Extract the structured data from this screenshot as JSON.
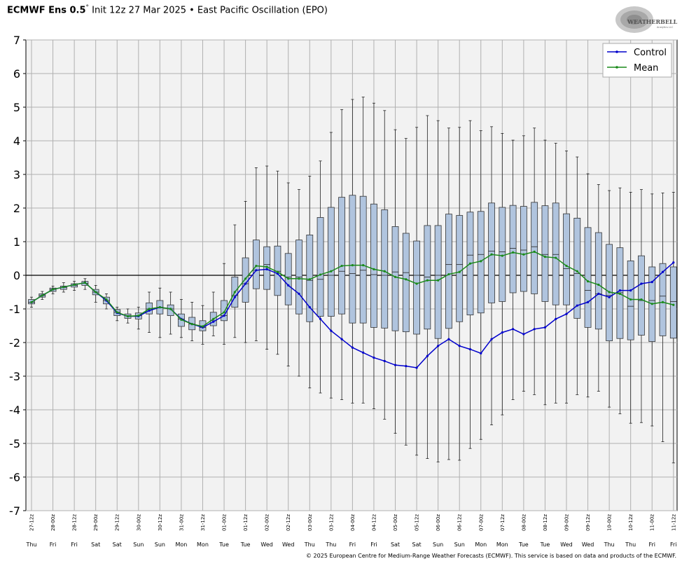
{
  "header": {
    "model": "ECMWF Ens 0.5",
    "model_suffix": "°",
    "rest": "Init 12z 27 Mar 2025 • East Pacific Oscillation (EPO)"
  },
  "logo_text": {
    "main": "WEATHERBELL",
    "sub": "Analytics LLC"
  },
  "footer": {
    "copyright": "© 2025 European Centre for Medium-Range Weather Forecasts (ECMWF). This service is based on data and products of the ECMWF."
  },
  "colors": {
    "control": "#0000cc",
    "mean": "#1a8a1a",
    "box_fill": "#b0c4de",
    "plot_bg": "#f2f2f2",
    "grid": "#b0b0b0"
  },
  "chart_data": {
    "type": "box",
    "ylim": [
      -7,
      7
    ],
    "yticks": [
      7,
      6,
      5,
      4,
      3,
      2,
      1,
      0,
      -1,
      -2,
      -3,
      -4,
      -5,
      -6,
      -7
    ],
    "grid": true,
    "legend_position": "top-right",
    "legend": [
      "Control",
      "Mean"
    ],
    "x_times": [
      "27-12z",
      "28-00z",
      "28-12z",
      "29-00z",
      "29-12z",
      "30-00z",
      "30-12z",
      "31-00z",
      "31-12z",
      "01-00z",
      "01-12z",
      "02-00z",
      "02-12z",
      "03-00z",
      "03-12z",
      "04-00z",
      "04-12z",
      "05-00z",
      "05-12z",
      "06-00z",
      "06-12z",
      "07-00z",
      "07-12z",
      "08-00z",
      "08-12z",
      "09-00z",
      "09-12z",
      "10-00z",
      "10-12z",
      "11-00z",
      "11-12z"
    ],
    "x_days": [
      "Thu",
      "Fri",
      "Fri",
      "Sat",
      "Sat",
      "Sun",
      "Sun",
      "Mon",
      "Mon",
      "Tue",
      "Tue",
      "Wed",
      "Wed",
      "Thu",
      "Thu",
      "Fri",
      "Fri",
      "Sat",
      "Sat",
      "Sun",
      "Sun",
      "Mon",
      "Mon",
      "Tue",
      "Tue",
      "Wed",
      "Wed",
      "Thu",
      "Thu",
      "Fri",
      "Fri"
    ],
    "series": [
      {
        "name": "Control",
        "values": [
          -0.8,
          -0.6,
          -0.42,
          -0.35,
          -0.28,
          -0.22,
          -0.5,
          -0.75,
          -1.12,
          -1.22,
          -1.22,
          -1.05,
          -0.95,
          -1.0,
          -1.3,
          -1.45,
          -1.55,
          -1.38,
          -1.2,
          -0.65,
          -0.25,
          0.15,
          0.18,
          0.05,
          -0.3,
          -0.55,
          -0.95,
          -1.3,
          -1.65,
          -1.9,
          -2.15,
          -2.3,
          -2.45,
          -2.55,
          -2.67,
          -2.7,
          -2.75,
          -2.4,
          -2.1,
          -1.9,
          -2.1,
          -2.2,
          -2.32,
          -1.9,
          -1.7,
          -1.6,
          -1.75,
          -1.6,
          -1.55,
          -1.3,
          -1.15,
          -0.9,
          -0.8,
          -0.55,
          -0.65,
          -0.45,
          -0.45,
          -0.25,
          -0.2,
          0.1,
          0.38
        ]
      },
      {
        "name": "Mean",
        "values": [
          -0.8,
          -0.6,
          -0.42,
          -0.35,
          -0.28,
          -0.22,
          -0.5,
          -0.72,
          -1.1,
          -1.22,
          -1.2,
          -1.0,
          -0.95,
          -1.0,
          -1.32,
          -1.45,
          -1.52,
          -1.3,
          -1.1,
          -0.5,
          -0.1,
          0.28,
          0.25,
          0.1,
          -0.1,
          -0.1,
          -0.12,
          0.02,
          0.12,
          0.28,
          0.3,
          0.3,
          0.18,
          0.12,
          -0.05,
          -0.12,
          -0.25,
          -0.15,
          -0.15,
          0.03,
          0.1,
          0.35,
          0.42,
          0.62,
          0.58,
          0.68,
          0.62,
          0.7,
          0.55,
          0.52,
          0.28,
          0.12,
          -0.18,
          -0.28,
          -0.5,
          -0.55,
          -0.72,
          -0.72,
          -0.85,
          -0.8,
          -0.88
        ]
      }
    ],
    "boxes": [
      {
        "min": -0.95,
        "q1": -0.85,
        "med": -0.8,
        "q3": -0.72,
        "max": -0.65
      },
      {
        "min": -0.72,
        "q1": -0.65,
        "med": -0.6,
        "q3": -0.55,
        "max": -0.48
      },
      {
        "min": -0.55,
        "q1": -0.48,
        "med": -0.42,
        "q3": -0.38,
        "max": -0.32
      },
      {
        "min": -0.5,
        "q1": -0.42,
        "med": -0.36,
        "q3": -0.32,
        "max": -0.22
      },
      {
        "min": -0.45,
        "q1": -0.35,
        "med": -0.3,
        "q3": -0.25,
        "max": -0.18
      },
      {
        "min": -0.42,
        "q1": -0.3,
        "med": -0.24,
        "q3": -0.18,
        "max": -0.1
      },
      {
        "min": -0.8,
        "q1": -0.58,
        "med": -0.5,
        "q3": -0.42,
        "max": -0.3
      },
      {
        "min": -1.0,
        "q1": -0.85,
        "med": -0.75,
        "q3": -0.65,
        "max": -0.55
      },
      {
        "min": -1.35,
        "q1": -1.2,
        "med": -1.1,
        "q3": -1.02,
        "max": -0.95
      },
      {
        "min": -1.42,
        "q1": -1.28,
        "med": -1.2,
        "q3": -1.15,
        "max": -1.0
      },
      {
        "min": -1.6,
        "q1": -1.3,
        "med": -1.2,
        "q3": -1.12,
        "max": -0.95
      },
      {
        "min": -1.7,
        "q1": -1.15,
        "med": -1.0,
        "q3": -0.82,
        "max": -0.5
      },
      {
        "min": -1.85,
        "q1": -1.15,
        "med": -0.95,
        "q3": -0.75,
        "max": -0.38
      },
      {
        "min": -1.75,
        "q1": -1.2,
        "med": -1.0,
        "q3": -0.88,
        "max": -0.5
      },
      {
        "min": -1.85,
        "q1": -1.52,
        "med": -1.3,
        "q3": -1.15,
        "max": -0.72
      },
      {
        "min": -1.95,
        "q1": -1.62,
        "med": -1.45,
        "q3": -1.25,
        "max": -0.8
      },
      {
        "min": -2.05,
        "q1": -1.65,
        "med": -1.55,
        "q3": -1.35,
        "max": -0.9
      },
      {
        "min": -1.8,
        "q1": -1.5,
        "med": -1.35,
        "q3": -1.1,
        "max": -0.5
      },
      {
        "min": -2.05,
        "q1": -1.35,
        "med": -1.2,
        "q3": -0.75,
        "max": 0.35
      },
      {
        "min": -1.85,
        "q1": -0.95,
        "med": -0.6,
        "q3": -0.05,
        "max": 1.5
      },
      {
        "min": -2.0,
        "q1": -0.8,
        "med": -0.25,
        "q3": 0.52,
        "max": 2.2
      },
      {
        "min": -1.95,
        "q1": -0.4,
        "med": 0.15,
        "q3": 1.05,
        "max": 3.2
      },
      {
        "min": -2.2,
        "q1": -0.42,
        "med": 0.32,
        "q3": 0.85,
        "max": 3.25
      },
      {
        "min": -2.35,
        "q1": -0.6,
        "med": 0.12,
        "q3": 0.87,
        "max": 3.1
      },
      {
        "min": -2.7,
        "q1": -0.88,
        "med": -0.05,
        "q3": 0.65,
        "max": 2.75
      },
      {
        "min": -3.0,
        "q1": -1.15,
        "med": -0.05,
        "q3": 1.05,
        "max": 2.55
      },
      {
        "min": -3.35,
        "q1": -1.38,
        "med": -0.15,
        "q3": 1.2,
        "max": 2.95
      },
      {
        "min": -3.5,
        "q1": -1.22,
        "med": -0.12,
        "q3": 1.72,
        "max": 3.4
      },
      {
        "min": -3.65,
        "q1": -1.22,
        "med": 0.0,
        "q3": 2.02,
        "max": 4.25
      },
      {
        "min": -3.7,
        "q1": -1.15,
        "med": 0.12,
        "q3": 2.32,
        "max": 4.93
      },
      {
        "min": -3.8,
        "q1": -1.42,
        "med": 0.05,
        "q3": 2.38,
        "max": 5.23
      },
      {
        "min": -3.8,
        "q1": -1.42,
        "med": 0.15,
        "q3": 2.35,
        "max": 5.3
      },
      {
        "min": -3.97,
        "q1": -1.55,
        "med": 0.02,
        "q3": 2.12,
        "max": 5.12
      },
      {
        "min": -4.28,
        "q1": -1.57,
        "med": 0.0,
        "q3": 1.95,
        "max": 4.9
      },
      {
        "min": -4.7,
        "q1": -1.65,
        "med": 0.1,
        "q3": 1.45,
        "max": 4.33
      },
      {
        "min": -5.05,
        "q1": -1.68,
        "med": 0.08,
        "q3": 1.25,
        "max": 4.07
      },
      {
        "min": -5.35,
        "q1": -1.75,
        "med": 0.0,
        "q3": 1.02,
        "max": 4.4
      },
      {
        "min": -5.45,
        "q1": -1.6,
        "med": -0.05,
        "q3": 1.48,
        "max": 4.75
      },
      {
        "min": -5.55,
        "q1": -1.88,
        "med": 0.0,
        "q3": 1.48,
        "max": 4.6
      },
      {
        "min": -5.48,
        "q1": -1.58,
        "med": 0.32,
        "q3": 1.82,
        "max": 4.38
      },
      {
        "min": -5.5,
        "q1": -1.38,
        "med": 0.32,
        "q3": 1.78,
        "max": 4.4
      },
      {
        "min": -5.15,
        "q1": -1.18,
        "med": 0.6,
        "q3": 1.88,
        "max": 4.6
      },
      {
        "min": -4.88,
        "q1": -1.12,
        "med": 0.62,
        "q3": 1.9,
        "max": 4.3
      },
      {
        "min": -4.45,
        "q1": -0.82,
        "med": 0.72,
        "q3": 2.15,
        "max": 4.42
      },
      {
        "min": -4.15,
        "q1": -0.78,
        "med": 0.7,
        "q3": 2.02,
        "max": 4.22
      },
      {
        "min": -3.7,
        "q1": -0.52,
        "med": 0.8,
        "q3": 2.08,
        "max": 4.02
      },
      {
        "min": -3.45,
        "q1": -0.48,
        "med": 0.75,
        "q3": 2.05,
        "max": 4.15
      },
      {
        "min": -3.55,
        "q1": -0.55,
        "med": 0.85,
        "q3": 2.17,
        "max": 4.38
      },
      {
        "min": -3.85,
        "q1": -0.78,
        "med": 0.62,
        "q3": 2.07,
        "max": 4.02
      },
      {
        "min": -3.8,
        "q1": -0.88,
        "med": 0.62,
        "q3": 2.15,
        "max": 3.93
      },
      {
        "min": -3.8,
        "q1": -0.88,
        "med": 0.2,
        "q3": 1.83,
        "max": 3.7
      },
      {
        "min": -3.55,
        "q1": -1.28,
        "med": 0.05,
        "q3": 1.7,
        "max": 3.52
      },
      {
        "min": -3.62,
        "q1": -1.55,
        "med": -0.45,
        "q3": 1.42,
        "max": 3.02
      },
      {
        "min": -3.45,
        "q1": -1.6,
        "med": -0.55,
        "q3": 1.27,
        "max": 2.7
      },
      {
        "min": -3.92,
        "q1": -1.95,
        "med": -0.6,
        "q3": 0.92,
        "max": 2.52
      },
      {
        "min": -4.12,
        "q1": -1.88,
        "med": -0.52,
        "q3": 0.82,
        "max": 2.6
      },
      {
        "min": -4.4,
        "q1": -1.92,
        "med": -0.92,
        "q3": 0.43,
        "max": 2.47
      },
      {
        "min": -4.38,
        "q1": -1.78,
        "med": -0.75,
        "q3": 0.58,
        "max": 2.55
      },
      {
        "min": -4.48,
        "q1": -1.97,
        "med": -0.75,
        "q3": 0.25,
        "max": 2.42
      },
      {
        "min": -4.95,
        "q1": -1.8,
        "med": -0.62,
        "q3": 0.35,
        "max": 2.45
      },
      {
        "min": -5.58,
        "q1": -1.87,
        "med": -0.78,
        "q3": 0.25,
        "max": 2.47
      }
    ]
  }
}
